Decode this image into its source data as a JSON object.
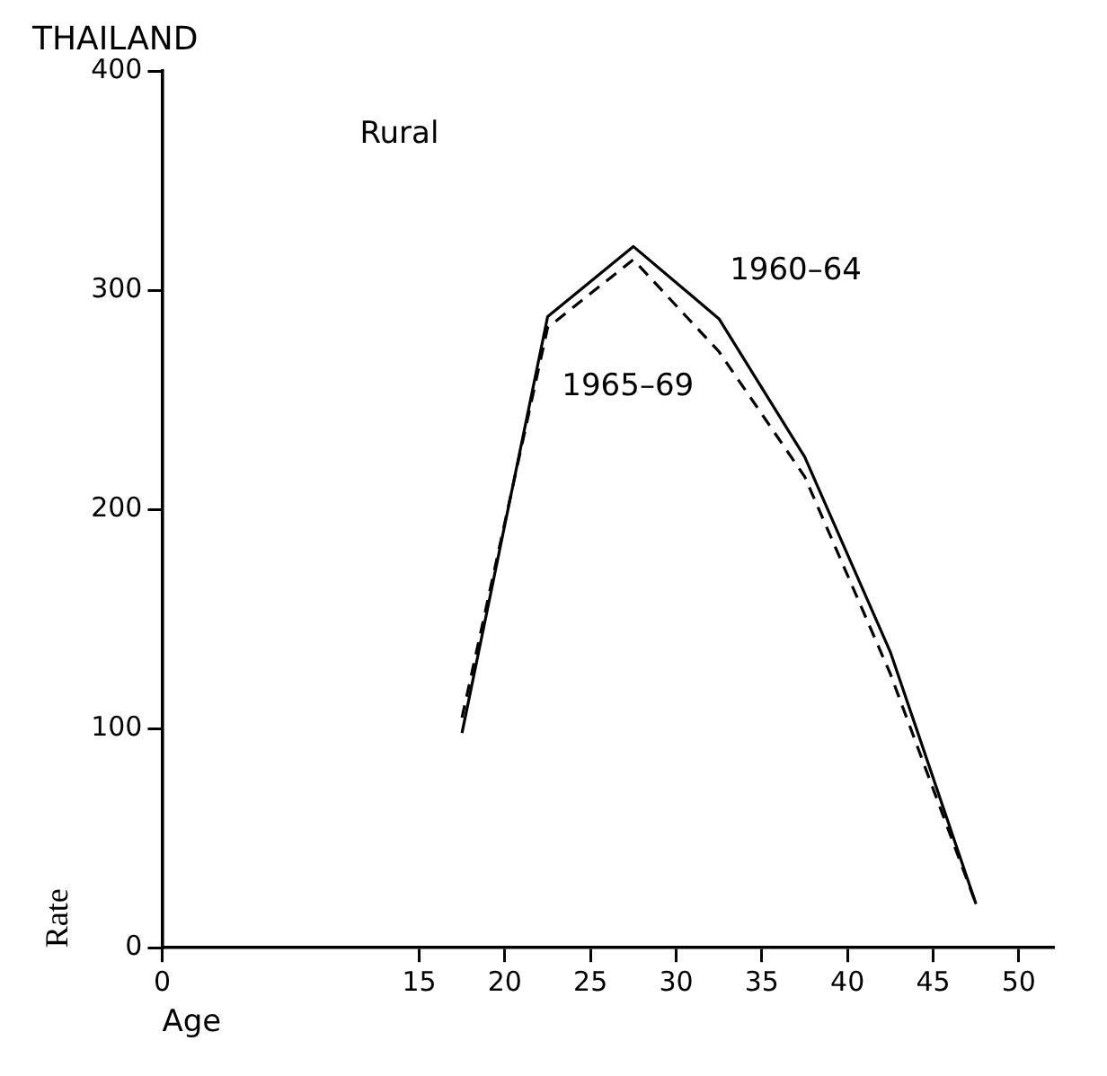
{
  "chart_data": {
    "type": "line",
    "title": "THAILAND",
    "xlabel": "Age",
    "ylabel": "Rate",
    "annotations": [
      "Rural"
    ],
    "x": [
      17.5,
      22.5,
      27.5,
      32.5,
      37.5,
      42.5,
      47.5
    ],
    "series": [
      {
        "name": "1960–64",
        "color": "#000000",
        "line_style": "solid",
        "values": [
          98,
          288,
          320,
          287,
          224,
          135,
          20
        ]
      },
      {
        "name": "1965–69",
        "color": "#000000",
        "line_style": "dashed",
        "values": [
          105,
          283,
          314,
          272,
          215,
          125,
          20
        ]
      }
    ],
    "xlim": [
      0,
      52
    ],
    "xticks": [
      0,
      15,
      20,
      25,
      30,
      35,
      40,
      45,
      50
    ],
    "ylim": [
      0,
      400
    ],
    "yticks": [
      0,
      100,
      200,
      300,
      400
    ],
    "grid": false,
    "legend": false,
    "marker": "none"
  }
}
